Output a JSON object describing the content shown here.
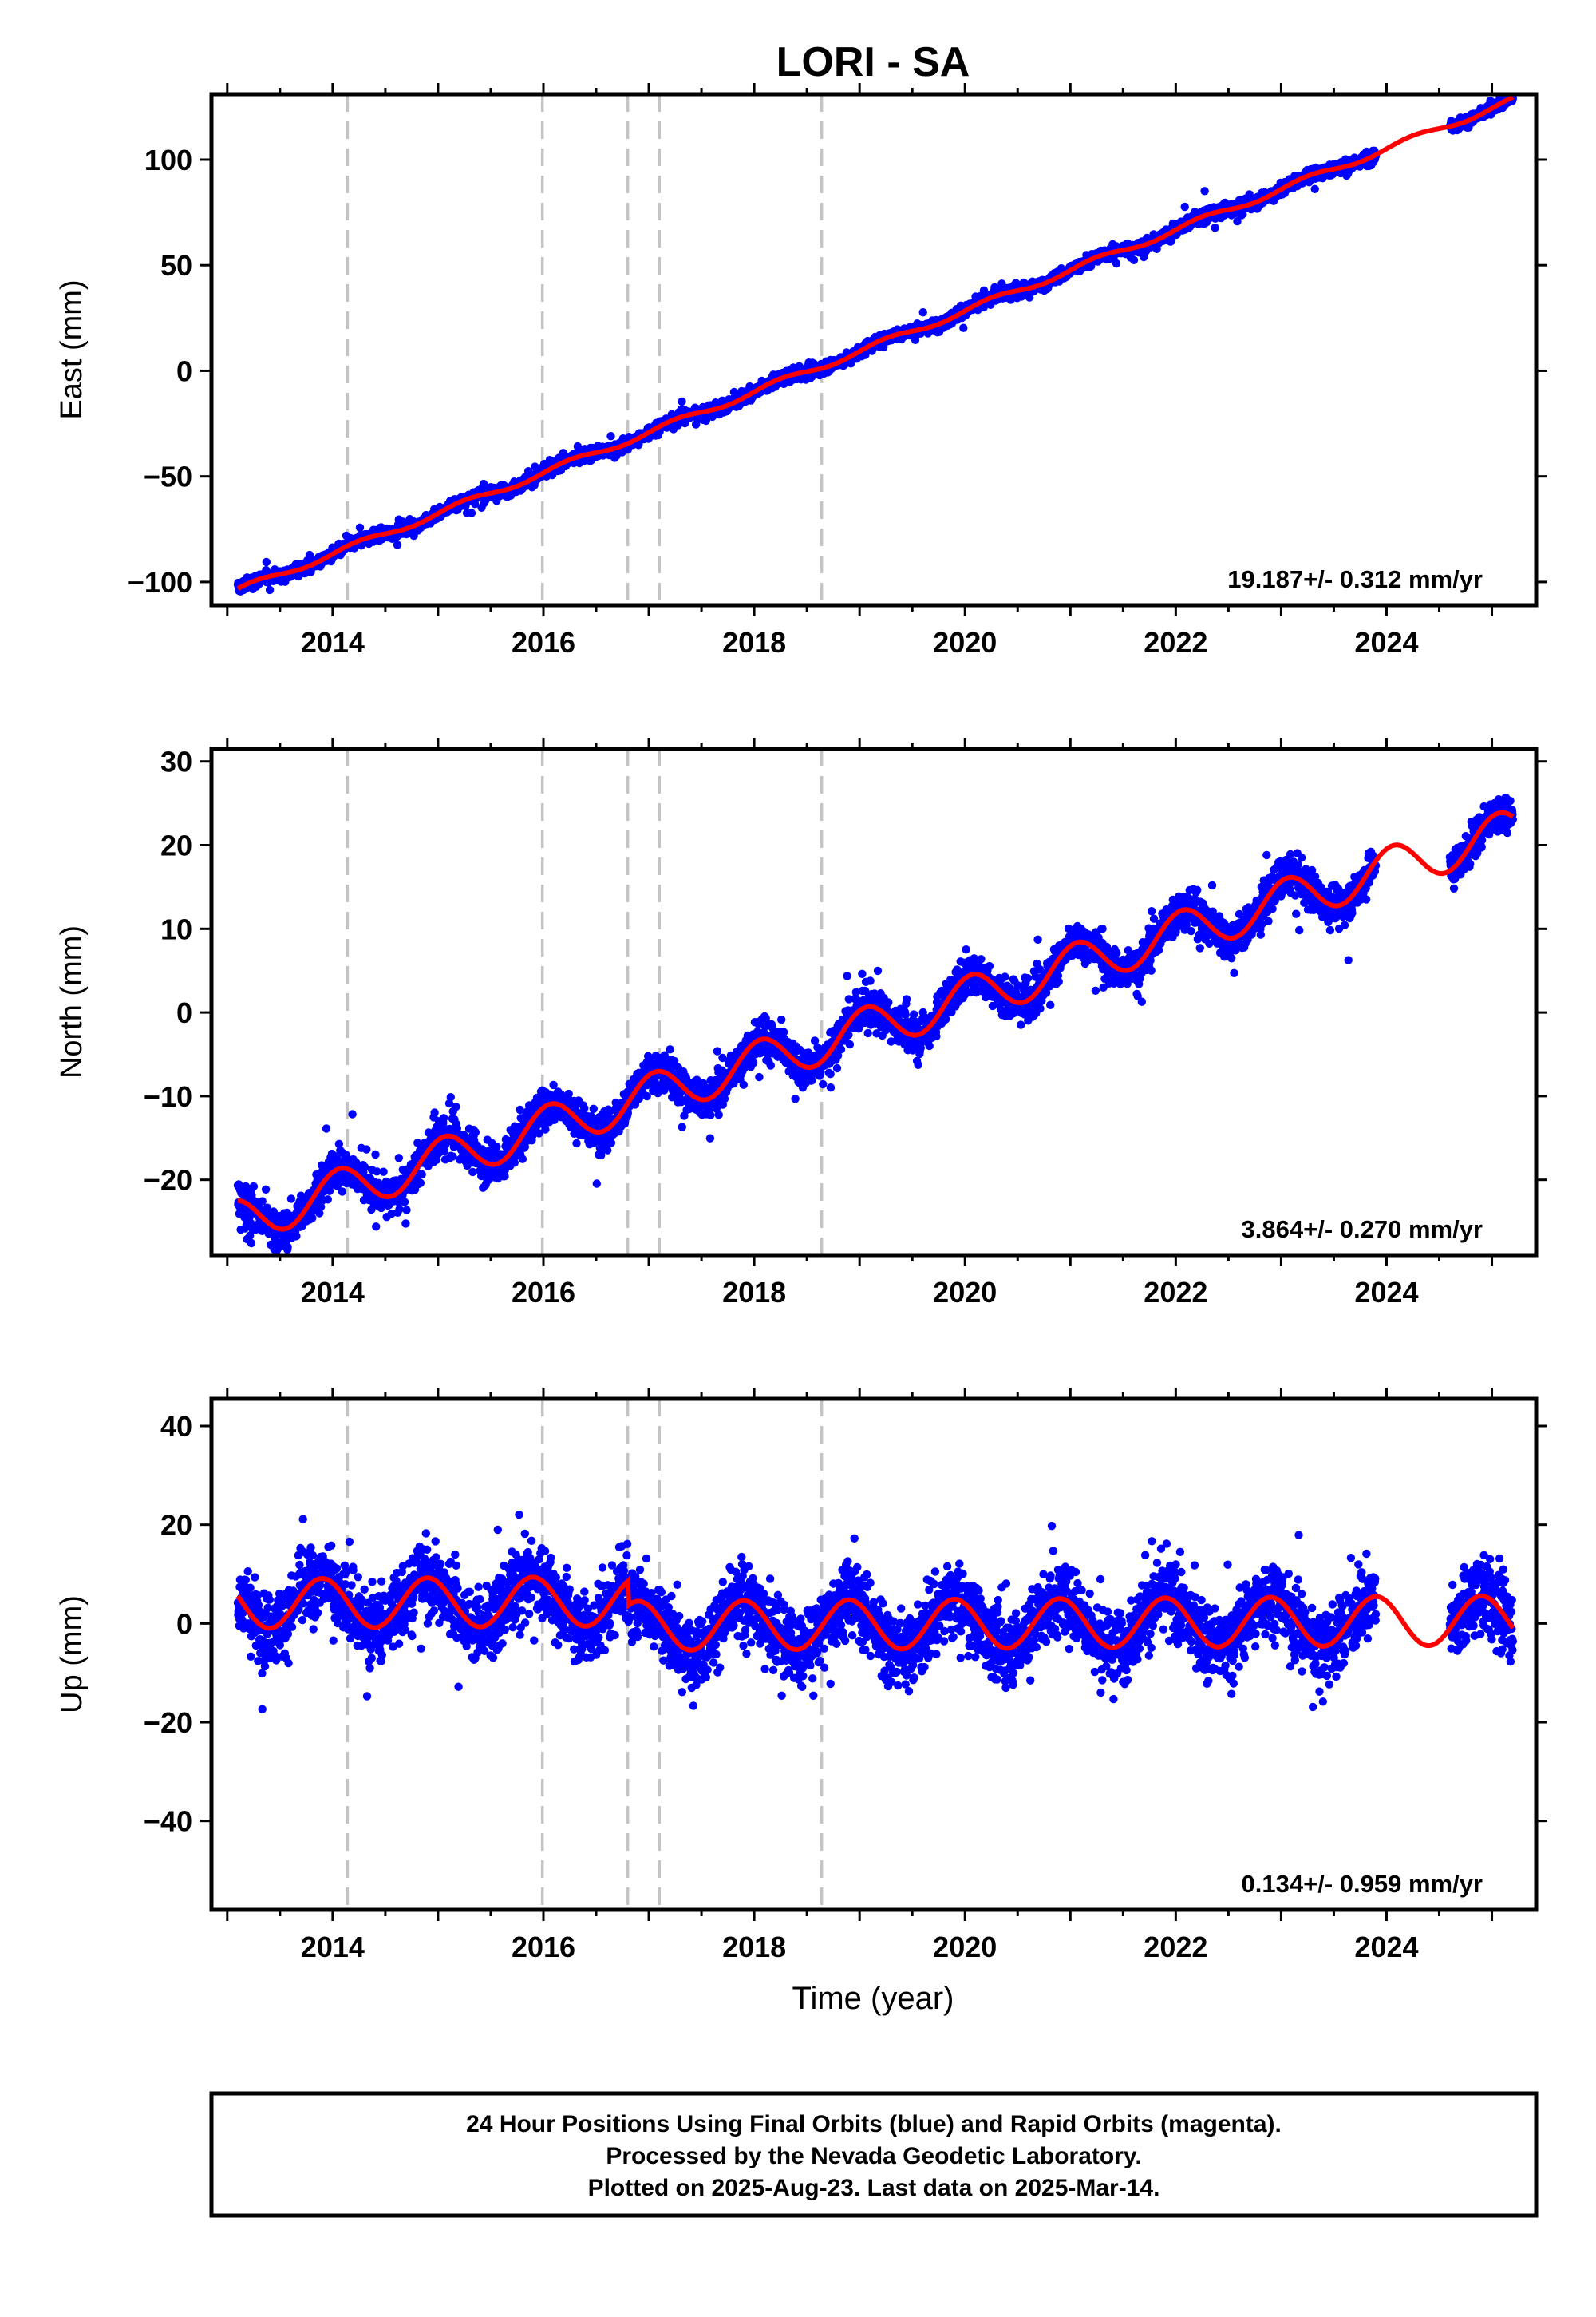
{
  "chart_data": {
    "type": "scatter",
    "title": "LORI - SA",
    "xlabel": "Time (year)",
    "xlim": [
      2012.85,
      2025.42
    ],
    "x_ticks": [
      "2014",
      "2016",
      "2018",
      "2020",
      "2022",
      "2024"
    ],
    "grid": false,
    "event_lines": [
      2014.14,
      2015.99,
      2016.8,
      2017.1,
      2018.64
    ],
    "colors": {
      "points": "#0000ff",
      "fit": "#ff0000",
      "event_lines": "#c4c4c4"
    },
    "data_span": [
      2013.1,
      2025.2
    ],
    "panels": [
      {
        "ylabel": "East (mm)",
        "ylim": [
          -111,
          131
        ],
        "y_ticks": [
          "100",
          "50",
          "0",
          "−50",
          "−100"
        ],
        "y_tick_values": [
          100,
          50,
          0,
          -50,
          -100
        ],
        "rate_text": "19.187+/- 0.312 mm/yr",
        "trend": {
          "slope_mm_per_yr": 19.187,
          "value_at_2013_1": -104
        },
        "seasonal": {
          "annual_amplitude_mm": 1.5,
          "phase_rad": 0.0
        },
        "offsets": [
          {
            "year": 2016.8,
            "mm": 0.0
          }
        ],
        "scatter_sd_mm": 2.0,
        "series": [
          {
            "name": "Final Orbits",
            "type": "scatter",
            "color": "#0000ff"
          },
          {
            "name": "Model fit",
            "type": "line",
            "color": "#ff0000"
          }
        ]
      },
      {
        "ylabel": "North (mm)",
        "ylim": [
          -29,
          31.5
        ],
        "y_ticks": [
          "30",
          "20",
          "10",
          "0",
          "−10",
          "−20"
        ],
        "y_tick_values": [
          30,
          20,
          10,
          0,
          -10,
          -20
        ],
        "rate_text": "3.864+/- 0.270 mm/yr",
        "trend": {
          "slope_mm_per_yr": 3.864,
          "value_at_2013_1": -25
        },
        "seasonal": {
          "annual_amplitude_mm": 2.6,
          "phase_rad": 1.2
        },
        "offsets": [],
        "scatter_sd_mm": 1.6,
        "series": [
          {
            "name": "Final Orbits",
            "type": "scatter",
            "color": "#0000ff"
          },
          {
            "name": "Model fit",
            "type": "line",
            "color": "#ff0000"
          }
        ]
      },
      {
        "ylabel": "Up (mm)",
        "ylim": [
          -58,
          45.5
        ],
        "y_ticks": [
          "40",
          "20",
          "0",
          "−20",
          "−40"
        ],
        "y_tick_values": [
          40,
          20,
          0,
          -20,
          -40
        ],
        "rate_text": "0.134+/- 0.959 mm/yr",
        "trend": {
          "slope_mm_per_yr": 0.134,
          "value_at_2013_1": 4
        },
        "seasonal": {
          "annual_amplitude_mm": 5.0,
          "phase_rad": 2.2
        },
        "offsets": [
          {
            "year": 2016.8,
            "mm": -5.0
          }
        ],
        "scatter_sd_mm": 5.0,
        "series": [
          {
            "name": "Final Orbits",
            "type": "scatter",
            "color": "#0000ff"
          },
          {
            "name": "Model fit",
            "type": "line",
            "color": "#ff0000"
          }
        ]
      }
    ]
  },
  "footer": {
    "line1": "24 Hour Positions Using Final Orbits (blue) and Rapid Orbits (magenta).",
    "line2": "Processed by the Nevada Geodetic Laboratory.",
    "line3": "Plotted on 2025-Aug-23. Last data on 2025-Mar-14."
  }
}
